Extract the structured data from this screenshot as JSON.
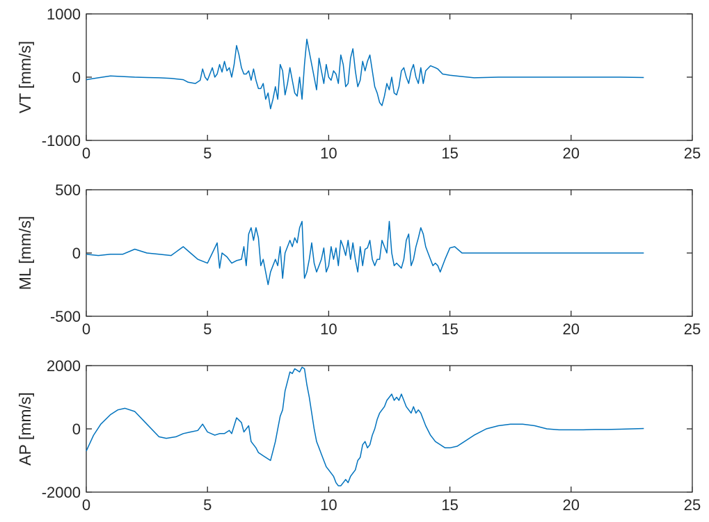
{
  "chart_data": [
    {
      "type": "line",
      "ylabel": "VT [mm/s]",
      "xlim": [
        0,
        25
      ],
      "ylim": [
        -1000,
        1000
      ],
      "xticks": [
        "0",
        "5",
        "10",
        "15",
        "20",
        "25"
      ],
      "yticks": [
        "1000",
        "0",
        "-1000"
      ],
      "grid": false,
      "series": [
        {
          "color": "#0072BD",
          "x": [
            0,
            0.5,
            1,
            1.5,
            2,
            2.5,
            3,
            3.5,
            4,
            4.2,
            4.5,
            4.7,
            4.8,
            4.9,
            5.0,
            5.2,
            5.3,
            5.4,
            5.5,
            5.6,
            5.7,
            5.8,
            5.9,
            6.0,
            6.1,
            6.2,
            6.3,
            6.4,
            6.5,
            6.6,
            6.7,
            6.8,
            6.9,
            7.0,
            7.1,
            7.2,
            7.3,
            7.4,
            7.5,
            7.6,
            7.7,
            7.8,
            7.9,
            8.0,
            8.1,
            8.2,
            8.3,
            8.4,
            8.5,
            8.6,
            8.7,
            8.8,
            8.9,
            9.0,
            9.1,
            9.2,
            9.3,
            9.4,
            9.5,
            9.6,
            9.7,
            9.8,
            9.9,
            10.0,
            10.1,
            10.2,
            10.3,
            10.4,
            10.5,
            10.6,
            10.7,
            10.8,
            10.9,
            11.0,
            11.1,
            11.2,
            11.3,
            11.4,
            11.5,
            11.6,
            11.7,
            11.8,
            11.9,
            12.0,
            12.1,
            12.2,
            12.3,
            12.4,
            12.5,
            12.6,
            12.7,
            12.8,
            12.9,
            13.0,
            13.1,
            13.2,
            13.3,
            13.4,
            13.5,
            13.6,
            13.7,
            13.8,
            13.9,
            14.0,
            14.2,
            14.4,
            14.5,
            14.7,
            15.0,
            15.5,
            16,
            17,
            18,
            19,
            20,
            21,
            22,
            23
          ],
          "y": [
            -40,
            -10,
            20,
            10,
            0,
            -5,
            -10,
            -20,
            -40,
            -80,
            -100,
            -50,
            130,
            0,
            -50,
            150,
            0,
            50,
            200,
            80,
            250,
            100,
            150,
            0,
            200,
            500,
            350,
            150,
            50,
            50,
            100,
            -50,
            130,
            -50,
            -180,
            -180,
            -100,
            -350,
            -250,
            -500,
            -350,
            -150,
            -350,
            200,
            100,
            -280,
            -100,
            150,
            -50,
            -250,
            -300,
            0,
            -350,
            200,
            600,
            400,
            200,
            0,
            -200,
            300,
            100,
            -100,
            200,
            0,
            -50,
            100,
            50,
            -100,
            350,
            200,
            -150,
            -100,
            300,
            450,
            100,
            -150,
            -50,
            250,
            100,
            250,
            350,
            100,
            -150,
            -250,
            -400,
            -450,
            -300,
            -100,
            -200,
            0,
            -250,
            -280,
            -150,
            100,
            150,
            0,
            -100,
            100,
            200,
            0,
            -100,
            150,
            -100,
            100,
            180,
            150,
            130,
            50,
            30,
            10,
            -10,
            0,
            0,
            0,
            0,
            0,
            0,
            -5
          ]
        }
      ]
    },
    {
      "type": "line",
      "ylabel": "ML [mm/s]",
      "xlim": [
        0,
        25
      ],
      "ylim": [
        -500,
        500
      ],
      "xticks": [
        "0",
        "5",
        "10",
        "15",
        "20",
        "25"
      ],
      "yticks": [
        "500",
        "0",
        "-500"
      ],
      "grid": false,
      "series": [
        {
          "color": "#0072BD",
          "x": [
            0,
            0.5,
            1,
            1.5,
            2,
            2.5,
            3,
            3.5,
            4,
            4.3,
            4.6,
            5.0,
            5.2,
            5.4,
            5.5,
            5.6,
            5.8,
            6.0,
            6.2,
            6.4,
            6.5,
            6.6,
            6.7,
            6.8,
            6.9,
            7.0,
            7.1,
            7.2,
            7.3,
            7.4,
            7.5,
            7.6,
            7.7,
            7.8,
            7.9,
            8.0,
            8.1,
            8.2,
            8.3,
            8.4,
            8.5,
            8.6,
            8.7,
            8.8,
            8.9,
            9.0,
            9.1,
            9.2,
            9.3,
            9.4,
            9.5,
            9.6,
            9.7,
            9.8,
            9.9,
            10.0,
            10.1,
            10.2,
            10.3,
            10.4,
            10.5,
            10.6,
            10.7,
            10.8,
            10.9,
            11.0,
            11.1,
            11.2,
            11.3,
            11.4,
            11.5,
            11.6,
            11.7,
            11.8,
            11.9,
            12.0,
            12.1,
            12.2,
            12.3,
            12.4,
            12.5,
            12.6,
            12.7,
            12.8,
            12.9,
            13.0,
            13.1,
            13.2,
            13.3,
            13.4,
            13.5,
            13.6,
            13.7,
            13.8,
            13.9,
            14.0,
            14.1,
            14.2,
            14.3,
            14.4,
            14.5,
            14.6,
            14.8,
            15.0,
            15.2,
            15.5,
            16,
            17,
            18,
            19,
            20,
            21,
            22,
            23
          ],
          "y": [
            -10,
            -20,
            -10,
            -10,
            30,
            0,
            -10,
            -20,
            50,
            0,
            -50,
            -80,
            0,
            80,
            -120,
            0,
            -30,
            -80,
            -60,
            -50,
            50,
            -100,
            150,
            200,
            100,
            200,
            120,
            -100,
            -50,
            -150,
            -250,
            -150,
            -100,
            -50,
            -100,
            50,
            -200,
            0,
            50,
            100,
            50,
            120,
            80,
            200,
            250,
            -200,
            -150,
            -50,
            80,
            -80,
            -150,
            -100,
            -50,
            40,
            -150,
            -100,
            50,
            -50,
            40,
            -100,
            100,
            50,
            -20,
            100,
            -50,
            80,
            -50,
            -150,
            50,
            -100,
            30,
            40,
            100,
            -50,
            -100,
            -50,
            -50,
            100,
            50,
            0,
            250,
            0,
            -100,
            -80,
            -100,
            -120,
            -50,
            100,
            150,
            -100,
            -50,
            50,
            120,
            200,
            150,
            50,
            0,
            -50,
            -100,
            -80,
            -100,
            -150,
            -50,
            40,
            50,
            0,
            0,
            0,
            0,
            0,
            0,
            0,
            0,
            0
          ]
        }
      ]
    },
    {
      "type": "line",
      "ylabel": "AP [mm/s]",
      "xlim": [
        0,
        25
      ],
      "ylim": [
        -2000,
        2000
      ],
      "xticks": [
        "0",
        "5",
        "10",
        "15",
        "20",
        "25"
      ],
      "yticks": [
        "2000",
        "0",
        "-2000"
      ],
      "grid": false,
      "series": [
        {
          "color": "#0072BD",
          "x": [
            0,
            0.3,
            0.6,
            1.0,
            1.3,
            1.6,
            2.0,
            2.5,
            3.0,
            3.3,
            3.7,
            4.0,
            4.3,
            4.6,
            4.8,
            5.0,
            5.3,
            5.5,
            5.7,
            5.9,
            6.0,
            6.1,
            6.2,
            6.4,
            6.5,
            6.6,
            6.7,
            6.8,
            6.9,
            7.0,
            7.1,
            7.2,
            7.3,
            7.4,
            7.5,
            7.6,
            7.7,
            7.8,
            7.9,
            8.0,
            8.1,
            8.2,
            8.3,
            8.4,
            8.5,
            8.6,
            8.7,
            8.8,
            8.9,
            9.0,
            9.1,
            9.2,
            9.3,
            9.4,
            9.5,
            9.6,
            9.7,
            9.8,
            9.9,
            10.0,
            10.1,
            10.2,
            10.3,
            10.4,
            10.5,
            10.6,
            10.7,
            10.8,
            10.9,
            11.0,
            11.1,
            11.2,
            11.3,
            11.4,
            11.5,
            11.6,
            11.7,
            11.8,
            11.9,
            12.0,
            12.1,
            12.2,
            12.3,
            12.4,
            12.5,
            12.6,
            12.7,
            12.8,
            12.9,
            13.0,
            13.1,
            13.2,
            13.3,
            13.4,
            13.5,
            13.6,
            13.7,
            13.8,
            13.9,
            14.0,
            14.2,
            14.4,
            14.6,
            14.8,
            15.0,
            15.3,
            15.6,
            16.0,
            16.5,
            17.0,
            17.5,
            18.0,
            18.5,
            19.0,
            19.5,
            20.0,
            20.5,
            21.0,
            21.5,
            22.0,
            22.5,
            23.0
          ],
          "y": [
            -700,
            -200,
            150,
            450,
            600,
            650,
            550,
            150,
            -250,
            -300,
            -250,
            -150,
            -100,
            -50,
            150,
            -100,
            -200,
            -150,
            -150,
            -50,
            -150,
            100,
            350,
            200,
            -100,
            0,
            100,
            -400,
            -500,
            -600,
            -750,
            -800,
            -850,
            -900,
            -950,
            -1000,
            -700,
            -400,
            0,
            400,
            600,
            1200,
            1500,
            1800,
            1750,
            1900,
            1850,
            1800,
            1950,
            1900,
            1400,
            1000,
            500,
            0,
            -400,
            -600,
            -800,
            -1000,
            -1200,
            -1300,
            -1400,
            -1500,
            -1700,
            -1800,
            -1800,
            -1700,
            -1600,
            -1700,
            -1500,
            -1400,
            -1300,
            -1000,
            -900,
            -500,
            -400,
            -600,
            -500,
            -200,
            0,
            300,
            500,
            600,
            700,
            900,
            1000,
            1100,
            900,
            1000,
            900,
            1100,
            900,
            700,
            600,
            500,
            700,
            500,
            600,
            500,
            300,
            100,
            -200,
            -400,
            -500,
            -600,
            -600,
            -550,
            -400,
            -200,
            0,
            100,
            150,
            150,
            100,
            0,
            -30,
            -30,
            -30,
            -20,
            -20,
            -10,
            0,
            10
          ]
        }
      ]
    }
  ]
}
